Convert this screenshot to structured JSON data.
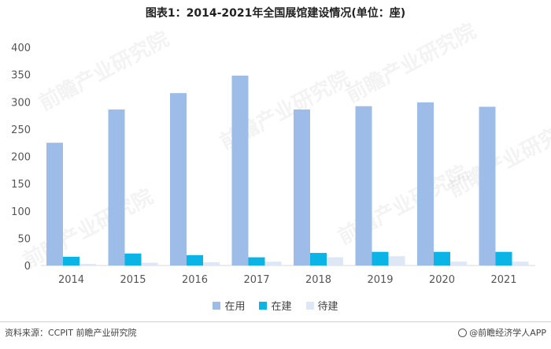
{
  "title": "图表1：2014-2021年全国展馆建设情况(单位：座)",
  "chart_data": {
    "type": "bar",
    "categories": [
      "2014",
      "2015",
      "2016",
      "2017",
      "2018",
      "2019",
      "2020",
      "2021"
    ],
    "series": [
      {
        "name": "在用",
        "color": "#9dbde8",
        "values": [
          225,
          286,
          316,
          348,
          286,
          292,
          299,
          291
        ]
      },
      {
        "name": "在建",
        "color": "#0ab4e6",
        "values": [
          16,
          22,
          19,
          15,
          23,
          25,
          25,
          25
        ]
      },
      {
        "name": "待建",
        "color": "#dde7f5",
        "values": [
          3,
          5,
          6,
          7,
          15,
          17,
          7,
          7
        ]
      }
    ],
    "ylim": [
      0,
      400
    ],
    "yticks": [
      0,
      50,
      100,
      150,
      200,
      250,
      300,
      350,
      400
    ],
    "grid": false,
    "legend_position": "bottom"
  },
  "footer": {
    "source": "资料来源：CCPIT 前瞻产业研究院",
    "brand": "@前瞻经济学人APP"
  },
  "watermark_text": "前瞻产业研究院"
}
